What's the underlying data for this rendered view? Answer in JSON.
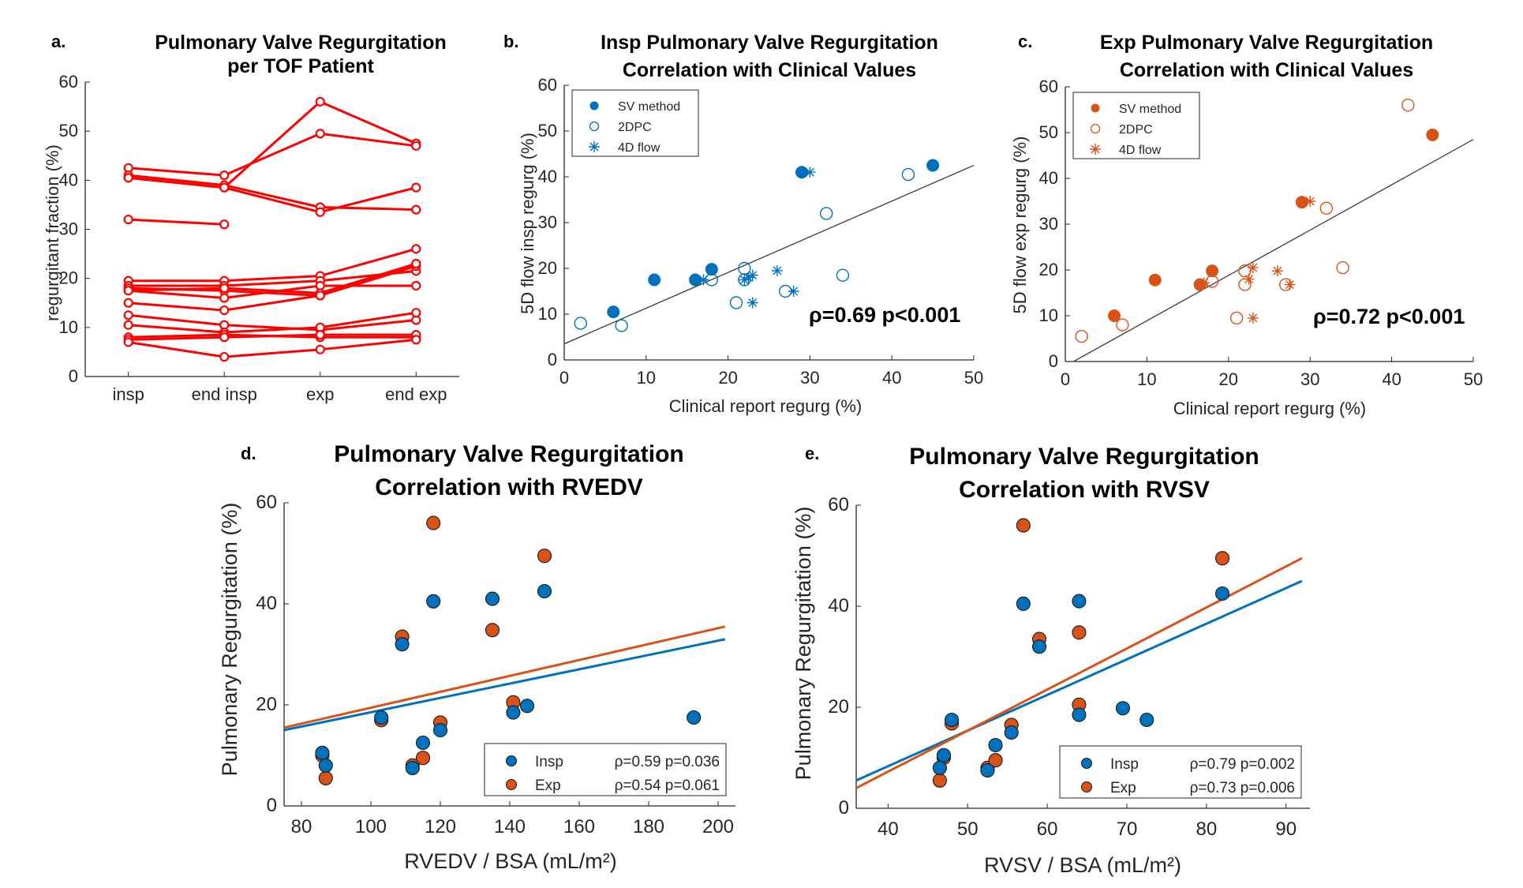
{
  "colors": {
    "red": "#ff0000",
    "blue": "#0072bd",
    "orange": "#d95319",
    "axis": "#262626",
    "fit": "#444444"
  },
  "panel_letters": [
    "a.",
    "b.",
    "c.",
    "d.",
    "e."
  ],
  "chart_data": [
    {
      "id": "a",
      "type": "line",
      "title": [
        "Pulmonary Valve Regurgitation",
        "per TOF Patient"
      ],
      "xlabel": "",
      "ylabel": "regurgitant fraction (%)",
      "categories": [
        "insp",
        "end insp",
        "exp",
        "end exp"
      ],
      "ylim": [
        0,
        60
      ],
      "yticks": [
        0,
        10,
        20,
        30,
        40,
        50,
        60
      ],
      "series": [
        {
          "values": [
            40.5,
            38.5,
            56,
            47.5
          ]
        },
        {
          "values": [
            42.5,
            41,
            49.5,
            47
          ]
        },
        {
          "values": [
            41,
            39,
            34.5,
            34
          ]
        },
        {
          "values": [
            40.5,
            38.5,
            33.5,
            38.5
          ]
        },
        {
          "values": [
            32,
            31,
            null,
            null
          ]
        },
        {
          "values": [
            19.5,
            19.5,
            20.5,
            26
          ]
        },
        {
          "values": [
            18.5,
            18.5,
            19.5,
            21.5
          ]
        },
        {
          "values": [
            18,
            17.5,
            16.5,
            22.5
          ]
        },
        {
          "values": [
            17.5,
            16,
            18.5,
            18.5
          ]
        },
        {
          "values": [
            17.5,
            18,
            17,
            23
          ]
        },
        {
          "values": [
            15,
            13.5,
            16.5,
            23
          ]
        },
        {
          "values": [
            12.5,
            10.5,
            9.5,
            11.5
          ]
        },
        {
          "values": [
            10.5,
            9,
            10,
            13
          ]
        },
        {
          "values": [
            8,
            8.5,
            8,
            8
          ]
        },
        {
          "values": [
            7.5,
            8,
            8.5,
            8.5
          ]
        },
        {
          "values": [
            7,
            4,
            5.5,
            7.5
          ]
        }
      ]
    },
    {
      "id": "b",
      "type": "scatter",
      "title": [
        "Insp Pulmonary Valve Regurgitation",
        "Correlation with Clinical Values"
      ],
      "xlabel": "Clinical report regurg (%)",
      "ylabel": "5D flow insp regurg (%)",
      "xlim": [
        0,
        50
      ],
      "ylim": [
        0,
        60
      ],
      "xticks": [
        0,
        10,
        20,
        30,
        40,
        50
      ],
      "yticks": [
        0,
        10,
        20,
        30,
        40,
        50,
        60
      ],
      "legend": "top-left",
      "annotation": "ρ=0.69 p<0.001",
      "fit_line": {
        "x": [
          0,
          50
        ],
        "y": [
          3.5,
          42.5
        ]
      },
      "series": [
        {
          "name": "SV method",
          "marker": "filled",
          "points": [
            [
              6,
              10.5
            ],
            [
              11,
              17.5
            ],
            [
              16,
              17.5
            ],
            [
              18,
              19.8
            ],
            [
              29,
              41
            ],
            [
              45,
              42.5
            ]
          ]
        },
        {
          "name": "2DPC",
          "marker": "open",
          "points": [
            [
              2,
              8
            ],
            [
              7,
              7.5
            ],
            [
              18,
              17.5
            ],
            [
              21,
              12.5
            ],
            [
              22,
              20
            ],
            [
              22,
              17.5
            ],
            [
              27,
              15
            ],
            [
              32,
              32
            ],
            [
              34,
              18.5
            ],
            [
              42,
              40.5
            ]
          ]
        },
        {
          "name": "4D flow",
          "marker": "star",
          "points": [
            [
              17,
              17.5
            ],
            [
              22,
              17.5
            ],
            [
              22.5,
              18
            ],
            [
              23,
              12.5
            ],
            [
              23,
              18.5
            ],
            [
              26,
              19.5
            ],
            [
              28,
              15
            ],
            [
              30,
              41
            ]
          ]
        }
      ]
    },
    {
      "id": "c",
      "type": "scatter",
      "title": [
        "Exp Pulmonary Valve Regurgitation",
        "Correlation with Clinical Values"
      ],
      "xlabel": "Clinical report regurg (%)",
      "ylabel": "5D flow exp regurg (%)",
      "xlim": [
        0,
        50
      ],
      "ylim": [
        0,
        60
      ],
      "xticks": [
        0,
        10,
        20,
        30,
        40,
        50
      ],
      "yticks": [
        0,
        10,
        20,
        30,
        40,
        50,
        60
      ],
      "legend": "top-left",
      "annotation": "ρ=0.72 p<0.001",
      "fit_line": {
        "x": [
          1,
          50
        ],
        "y": [
          0,
          48.5
        ]
      },
      "series": [
        {
          "name": "SV method",
          "marker": "filled",
          "points": [
            [
              6,
              10
            ],
            [
              11,
              17.8
            ],
            [
              16.5,
              16.8
            ],
            [
              18,
              19.8
            ],
            [
              29,
              34.8
            ],
            [
              45,
              49.5
            ]
          ]
        },
        {
          "name": "2DPC",
          "marker": "open",
          "points": [
            [
              2,
              5.5
            ],
            [
              7,
              8
            ],
            [
              18,
              17.5
            ],
            [
              21,
              9.5
            ],
            [
              22,
              16.8
            ],
            [
              22,
              19.8
            ],
            [
              27,
              16.8
            ],
            [
              32,
              33.5
            ],
            [
              34,
              20.5
            ],
            [
              42,
              56
            ]
          ]
        },
        {
          "name": "4D flow",
          "marker": "star",
          "points": [
            [
              17,
              17.2
            ],
            [
              22.5,
              18
            ],
            [
              23,
              20.5
            ],
            [
              23,
              9.5
            ],
            [
              26,
              19.8
            ],
            [
              27.5,
              16.8
            ],
            [
              30,
              35
            ]
          ]
        }
      ]
    },
    {
      "id": "d",
      "type": "scatter",
      "title": [
        "Pulmonary Valve Regurgitation",
        "Correlation with RVEDV"
      ],
      "xlabel": "RVEDV / BSA (mL/m²)",
      "ylabel": "Pulmonary Regurgitation (%)",
      "xlim": [
        75,
        205
      ],
      "ylim": [
        0,
        60
      ],
      "xticks": [
        80,
        100,
        120,
        140,
        160,
        180,
        200
      ],
      "yticks": [
        0,
        20,
        40,
        60
      ],
      "legend": "bottom-right",
      "series": [
        {
          "name": "Insp",
          "stat": "ρ=0.59 p=0.036",
          "points": [
            [
              86,
              10.5
            ],
            [
              87,
              8
            ],
            [
              103,
              17.5
            ],
            [
              109,
              32
            ],
            [
              112,
              7.5
            ],
            [
              115,
              12.5
            ],
            [
              118,
              40.5
            ],
            [
              120,
              15
            ],
            [
              135,
              41
            ],
            [
              141,
              18.5
            ],
            [
              145,
              19.8
            ],
            [
              150,
              42.5
            ],
            [
              193,
              17.5
            ]
          ],
          "fit": {
            "x": [
              75,
              202
            ],
            "y": [
              15,
              33
            ]
          }
        },
        {
          "name": "Exp",
          "stat": "ρ=0.54 p=0.061",
          "points": [
            [
              86,
              10
            ],
            [
              87,
              5.5
            ],
            [
              103,
              17
            ],
            [
              109,
              33.5
            ],
            [
              112,
              8
            ],
            [
              115,
              9.5
            ],
            [
              118,
              56
            ],
            [
              120,
              16.5
            ],
            [
              135,
              34.8
            ],
            [
              141,
              20.5
            ],
            [
              150,
              49.5
            ]
          ],
          "fit": {
            "x": [
              75,
              202
            ],
            "y": [
              15.5,
              35.5
            ]
          }
        }
      ]
    },
    {
      "id": "e",
      "type": "scatter",
      "title": [
        "Pulmonary Valve Regurgitation",
        "Correlation with RVSV"
      ],
      "xlabel": "RVSV / BSA (mL/m²)",
      "ylabel": "Pulmonary Regurgitation (%)",
      "xlim": [
        36,
        93
      ],
      "ylim": [
        0,
        60
      ],
      "xticks": [
        40,
        50,
        60,
        70,
        80,
        90
      ],
      "yticks": [
        0,
        20,
        40,
        60
      ],
      "legend": "bottom-right",
      "series": [
        {
          "name": "Insp",
          "stat": "ρ=0.79 p=0.002",
          "points": [
            [
              46.5,
              8
            ],
            [
              47,
              10.5
            ],
            [
              48,
              17.5
            ],
            [
              52.5,
              7.5
            ],
            [
              53.5,
              12.5
            ],
            [
              55.5,
              15
            ],
            [
              57,
              40.5
            ],
            [
              59,
              32
            ],
            [
              64,
              41
            ],
            [
              64,
              18.5
            ],
            [
              69.5,
              19.8
            ],
            [
              72.5,
              17.5
            ],
            [
              82,
              42.5
            ]
          ],
          "fit": {
            "x": [
              36,
              92
            ],
            "y": [
              5.5,
              45
            ]
          }
        },
        {
          "name": "Exp",
          "stat": "ρ=0.73 p=0.006",
          "points": [
            [
              46.5,
              5.5
            ],
            [
              47,
              10
            ],
            [
              48,
              16.8
            ],
            [
              52.5,
              8
            ],
            [
              53.5,
              9.5
            ],
            [
              55.5,
              16.5
            ],
            [
              57,
              56
            ],
            [
              59,
              33.5
            ],
            [
              64,
              34.8
            ],
            [
              64,
              20.5
            ],
            [
              82,
              49.5
            ]
          ],
          "fit": {
            "x": [
              36,
              92
            ],
            "y": [
              4,
              49.5
            ]
          }
        }
      ]
    }
  ]
}
